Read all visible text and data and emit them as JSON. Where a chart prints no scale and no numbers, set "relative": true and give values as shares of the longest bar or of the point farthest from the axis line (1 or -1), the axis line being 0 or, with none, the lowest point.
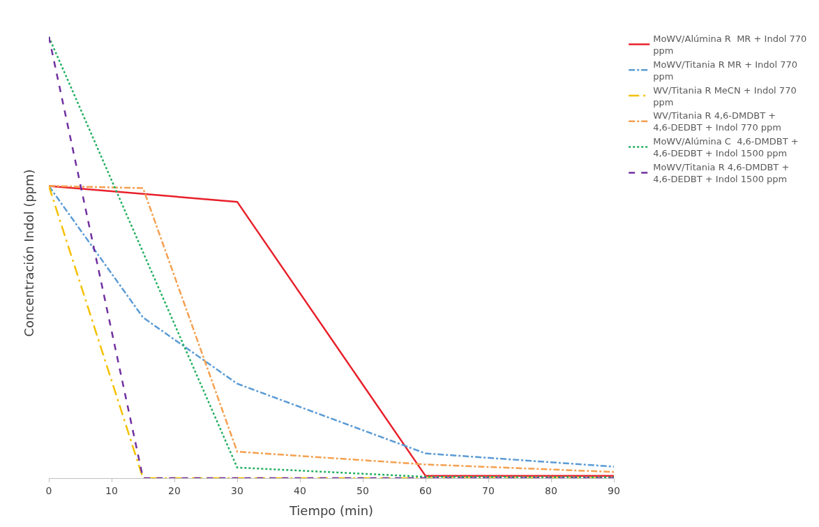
{
  "chart_data": {
    "type": "line",
    "xlabel": "Tiempo (min)",
    "ylabel": "Concentración Indol (ppm)",
    "relative": true,
    "xlim": [
      0,
      90
    ],
    "xticks": [
      0,
      10,
      20,
      30,
      40,
      50,
      60,
      70,
      80,
      90
    ],
    "legend": "right",
    "marker": "none",
    "series": [
      {
        "name": "MoWV/Alúmina R  MR + Indol 770 ppm",
        "color": "#e8202a",
        "line_style": "solid",
        "x": [
          0,
          30,
          60,
          90
        ],
        "values": [
          0.662,
          0.626,
          0.005,
          0.005
        ]
      },
      {
        "name": "MoWV/Titania R MR + Indol 770 ppm",
        "color": "#5b9bd5",
        "line_style": "dashdot",
        "x": [
          0,
          15,
          30,
          60,
          90
        ],
        "values": [
          0.662,
          0.364,
          0.214,
          0.056,
          0.026
        ]
      },
      {
        "name": "WV/Titania R MeCN + Indol 770 ppm",
        "color": "#f5c000",
        "line_style": "longdashdot",
        "x": [
          0,
          15,
          30,
          60,
          90
        ],
        "values": [
          0.662,
          0,
          0,
          0,
          0
        ]
      },
      {
        "name": "WV/Titania R 4,6-DMDBT + 4,6-DEDBT + Indol 770 ppm",
        "color": "#f4a050",
        "line_style": "dashdot",
        "x": [
          0,
          15,
          30,
          60,
          90
        ],
        "values": [
          0.662,
          0.657,
          0.06,
          0.031,
          0.014
        ]
      },
      {
        "name": "MoWV/Alúmina C  4,6-DMDBT + 4,6-DEDBT + Indol 1500 ppm",
        "color": "#22b060",
        "line_style": "dotted",
        "x": [
          0,
          30,
          60,
          90
        ],
        "values": [
          1,
          0.024,
          0.003,
          0.002
        ]
      },
      {
        "name": "MoWV/Titania R 4,6-DMDBT + 4,6-DEDBT + Indol 1500 ppm",
        "color": "#7030a0",
        "line_style": "dashed",
        "x": [
          0,
          15,
          30,
          60,
          90
        ],
        "values": [
          1,
          0,
          0,
          0,
          0
        ]
      }
    ]
  }
}
